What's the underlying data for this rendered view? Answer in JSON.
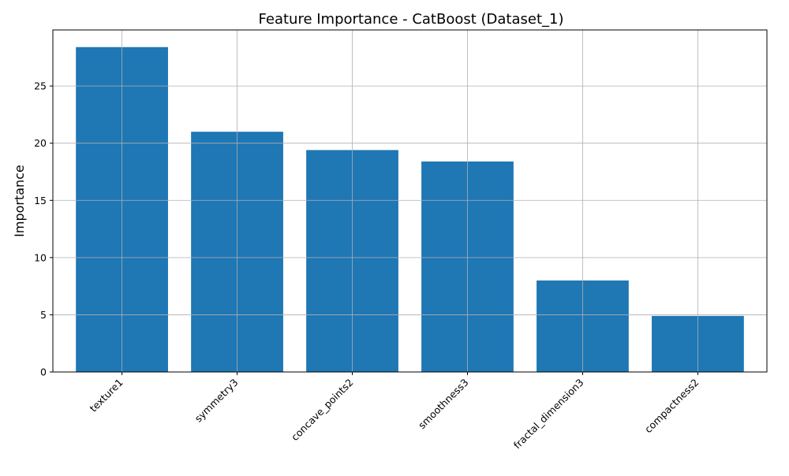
{
  "chart_data": {
    "type": "bar",
    "title": "Feature Importance - CatBoost (Dataset_1)",
    "xlabel": "",
    "ylabel": "Importance",
    "categories": [
      "texture1",
      "symmetry3",
      "concave_points2",
      "smoothness3",
      "fractal_dimension3",
      "compactness2"
    ],
    "values": [
      28.4,
      21.0,
      19.4,
      18.4,
      8.0,
      4.9
    ],
    "ylim": [
      0,
      29.9
    ],
    "yticks": [
      0,
      5,
      10,
      15,
      20,
      25
    ],
    "grid": true,
    "legend": "none",
    "bar_color": "#1f77b4"
  }
}
